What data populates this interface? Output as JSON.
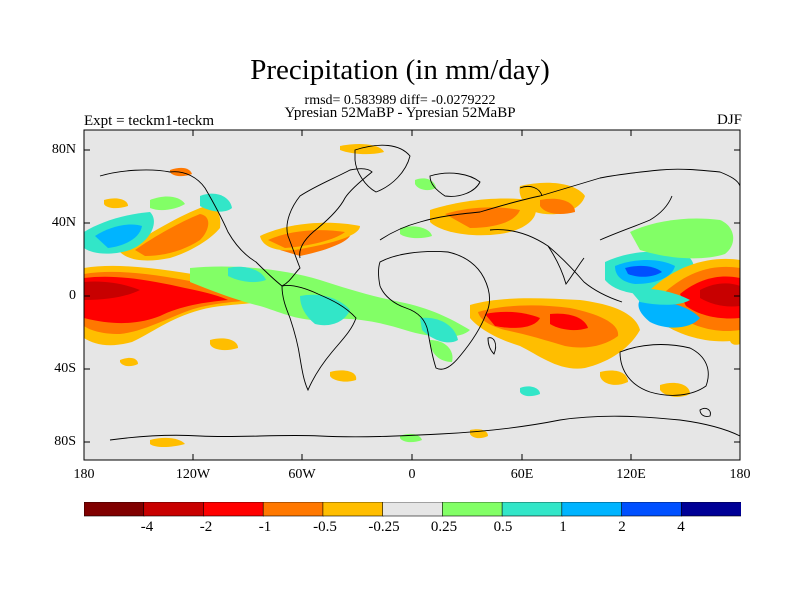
{
  "title": "Precipitation (in mm/day)",
  "stats": "rmsd= 0.583989 diff= -0.0279222",
  "subtitle": "Ypresian  52MaBP - Ypresian  52MaBP",
  "left_label": "Expt = teckm1-teckm",
  "right_label": "DJF",
  "lat_ticks": [
    "80N",
    "40N",
    "0",
    "40S",
    "80S"
  ],
  "lon_ticks": [
    "180",
    "120W",
    "60W",
    "0",
    "60E",
    "120E",
    "180"
  ],
  "colorbar": {
    "labels": [
      "-4",
      "-2",
      "-1",
      "-0.5",
      "-0.25",
      "0.25",
      "0.5",
      "1",
      "2",
      "4"
    ],
    "colors": [
      "#800000",
      "#c80000",
      "#ff0000",
      "#ff7800",
      "#ffbe00",
      "#e6e6e6",
      "#82ff66",
      "#32e6c8",
      "#00b4ff",
      "#0050ff",
      "#000096"
    ]
  },
  "colors": {
    "land_bg": "#e6e6e6",
    "coast": "#000000"
  }
}
